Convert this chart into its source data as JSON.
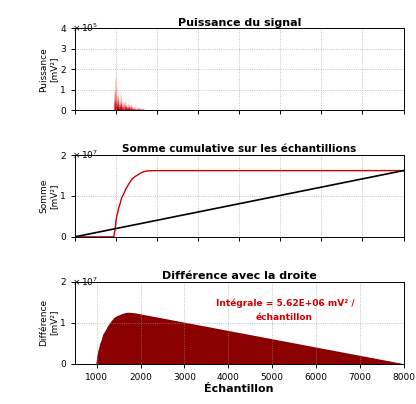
{
  "title1": "Puissance du signal",
  "title2": "Somme cumulative sur les échantillions",
  "title3": "Différence avec la droite",
  "xlabel": "Échantillon",
  "ylabel1": "Puissance [mV²]",
  "ylabel2": "Somme [mV²]",
  "ylabel3": "Différence [mV²]",
  "xlim1": [
    0,
    8000
  ],
  "xlim23": [
    500,
    8000
  ],
  "ylim1": [
    0,
    400000.0
  ],
  "ylim2": [
    0,
    20000000.0
  ],
  "ylim3": [
    0,
    20000000.0
  ],
  "annotation_line1": "Intégrale = 5.62E+06 mV² /",
  "annotation_line2": "échantillon",
  "signal_start": 950,
  "signal_burst_end": 1700,
  "signal_end": 1900,
  "n_samples": 8000,
  "cumsum_plateau": 16200000.0,
  "droite_final": 16200000.0,
  "color_signal": "#cc0000",
  "color_dark_red": "#8b0000",
  "color_black": "#000000",
  "bg_color": "#ffffff",
  "grid_color": "#999999"
}
